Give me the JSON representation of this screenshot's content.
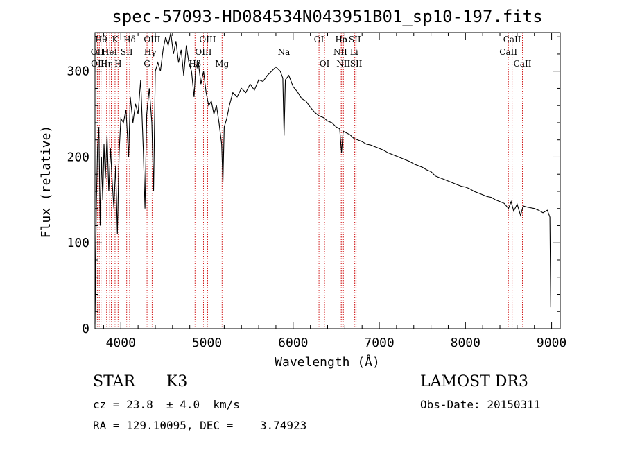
{
  "chart_data": {
    "type": "line",
    "title": "spec-57093-HD084534N043951B01_sp10-197.fits",
    "xlabel": "Wavelength (Å)",
    "ylabel": "Flux (relative)",
    "xlim": [
      3700,
      9100
    ],
    "ylim": [
      0,
      345
    ],
    "xticks": [
      4000,
      5000,
      6000,
      7000,
      8000,
      9000
    ],
    "yticks": [
      0,
      100,
      200,
      300
    ],
    "series": [
      {
        "name": "flux",
        "points": [
          [
            3700,
            5
          ],
          [
            3715,
            140
          ],
          [
            3730,
            210
          ],
          [
            3745,
            235
          ],
          [
            3760,
            120
          ],
          [
            3775,
            200
          ],
          [
            3790,
            150
          ],
          [
            3805,
            215
          ],
          [
            3820,
            175
          ],
          [
            3840,
            225
          ],
          [
            3860,
            160
          ],
          [
            3880,
            210
          ],
          [
            3900,
            170
          ],
          [
            3920,
            140
          ],
          [
            3940,
            190
          ],
          [
            3960,
            110
          ],
          [
            3980,
            205
          ],
          [
            4000,
            245
          ],
          [
            4030,
            240
          ],
          [
            4060,
            255
          ],
          [
            4090,
            200
          ],
          [
            4110,
            270
          ],
          [
            4140,
            240
          ],
          [
            4170,
            262
          ],
          [
            4200,
            250
          ],
          [
            4230,
            290
          ],
          [
            4260,
            210
          ],
          [
            4280,
            140
          ],
          [
            4300,
            250
          ],
          [
            4330,
            280
          ],
          [
            4360,
            240
          ],
          [
            4380,
            160
          ],
          [
            4400,
            300
          ],
          [
            4430,
            310
          ],
          [
            4460,
            300
          ],
          [
            4490,
            325
          ],
          [
            4520,
            340
          ],
          [
            4550,
            330
          ],
          [
            4580,
            345
          ],
          [
            4610,
            320
          ],
          [
            4640,
            335
          ],
          [
            4670,
            310
          ],
          [
            4700,
            325
          ],
          [
            4730,
            295
          ],
          [
            4760,
            330
          ],
          [
            4790,
            310
          ],
          [
            4820,
            300
          ],
          [
            4850,
            270
          ],
          [
            4870,
            305
          ],
          [
            4900,
            310
          ],
          [
            4930,
            285
          ],
          [
            4960,
            300
          ],
          [
            4990,
            275
          ],
          [
            5020,
            260
          ],
          [
            5050,
            265
          ],
          [
            5080,
            250
          ],
          [
            5110,
            260
          ],
          [
            5140,
            240
          ],
          [
            5170,
            215
          ],
          [
            5185,
            170
          ],
          [
            5200,
            235
          ],
          [
            5230,
            245
          ],
          [
            5260,
            260
          ],
          [
            5300,
            275
          ],
          [
            5350,
            270
          ],
          [
            5400,
            280
          ],
          [
            5450,
            275
          ],
          [
            5500,
            285
          ],
          [
            5550,
            278
          ],
          [
            5600,
            290
          ],
          [
            5650,
            288
          ],
          [
            5700,
            295
          ],
          [
            5750,
            300
          ],
          [
            5800,
            305
          ],
          [
            5850,
            300
          ],
          [
            5880,
            292
          ],
          [
            5895,
            225
          ],
          [
            5910,
            290
          ],
          [
            5950,
            295
          ],
          [
            6000,
            282
          ],
          [
            6050,
            276
          ],
          [
            6100,
            268
          ],
          [
            6150,
            265
          ],
          [
            6200,
            258
          ],
          [
            6250,
            252
          ],
          [
            6300,
            248
          ],
          [
            6350,
            246
          ],
          [
            6400,
            242
          ],
          [
            6450,
            240
          ],
          [
            6500,
            235
          ],
          [
            6540,
            233
          ],
          [
            6562,
            205
          ],
          [
            6580,
            230
          ],
          [
            6620,
            228
          ],
          [
            6660,
            226
          ],
          [
            6700,
            222
          ],
          [
            6750,
            220
          ],
          [
            6800,
            218
          ],
          [
            6850,
            215
          ],
          [
            6900,
            214
          ],
          [
            6950,
            212
          ],
          [
            7000,
            210
          ],
          [
            7050,
            208
          ],
          [
            7100,
            205
          ],
          [
            7150,
            203
          ],
          [
            7200,
            201
          ],
          [
            7250,
            199
          ],
          [
            7300,
            197
          ],
          [
            7350,
            195
          ],
          [
            7400,
            192
          ],
          [
            7450,
            190
          ],
          [
            7500,
            188
          ],
          [
            7550,
            185
          ],
          [
            7600,
            183
          ],
          [
            7650,
            178
          ],
          [
            7700,
            176
          ],
          [
            7750,
            174
          ],
          [
            7800,
            172
          ],
          [
            7850,
            170
          ],
          [
            7900,
            168
          ],
          [
            7950,
            166
          ],
          [
            8000,
            165
          ],
          [
            8050,
            163
          ],
          [
            8100,
            160
          ],
          [
            8150,
            158
          ],
          [
            8200,
            156
          ],
          [
            8250,
            154
          ],
          [
            8300,
            153
          ],
          [
            8350,
            150
          ],
          [
            8400,
            148
          ],
          [
            8450,
            146
          ],
          [
            8500,
            140
          ],
          [
            8530,
            148
          ],
          [
            8560,
            137
          ],
          [
            8600,
            145
          ],
          [
            8640,
            132
          ],
          [
            8670,
            143
          ],
          [
            8700,
            142
          ],
          [
            8750,
            141
          ],
          [
            8800,
            140
          ],
          [
            8850,
            138
          ],
          [
            8900,
            135
          ],
          [
            8950,
            138
          ],
          [
            8980,
            130
          ],
          [
            8990,
            25
          ]
        ]
      }
    ],
    "lines": [
      {
        "wave": 3727,
        "label": "OII",
        "row": 1
      },
      {
        "wave": 3750,
        "label": "OIII",
        "row": 2
      },
      {
        "wave": 3770,
        "label": "Hθ",
        "row": 0
      },
      {
        "wave": 3835,
        "label": "Hη",
        "row": 2
      },
      {
        "wave": 3870,
        "label": "HeI",
        "row": 1
      },
      {
        "wave": 3889,
        "label": "",
        "row": 0
      },
      {
        "wave": 3933,
        "label": "K",
        "row": 0
      },
      {
        "wave": 3968,
        "label": "H",
        "row": 2
      },
      {
        "wave": 4068,
        "label": "SII",
        "row": 1
      },
      {
        "wave": 4102,
        "label": "Hδ",
        "row": 0
      },
      {
        "wave": 4304,
        "label": "G",
        "row": 2
      },
      {
        "wave": 4340,
        "label": "Hγ",
        "row": 1
      },
      {
        "wave": 4363,
        "label": "OIII",
        "row": 0
      },
      {
        "wave": 4861,
        "label": "Hβ",
        "row": 2
      },
      {
        "wave": 4959,
        "label": "OIII",
        "row": 1
      },
      {
        "wave": 5007,
        "label": "OIII",
        "row": 0
      },
      {
        "wave": 5175,
        "label": "Mg",
        "row": 2
      },
      {
        "wave": 5893,
        "label": "Na",
        "row": 1
      },
      {
        "wave": 6300,
        "label": "OI",
        "row": 0
      },
      {
        "wave": 6364,
        "label": "OI",
        "row": 2
      },
      {
        "wave": 6548,
        "label": "NII",
        "row": 1
      },
      {
        "wave": 6563,
        "label": "Hα",
        "row": 0
      },
      {
        "wave": 6583,
        "label": "NII",
        "row": 2
      },
      {
        "wave": 6708,
        "label": "Li",
        "row": 1
      },
      {
        "wave": 6716,
        "label": "SII",
        "row": 0
      },
      {
        "wave": 6731,
        "label": "SII",
        "row": 2
      },
      {
        "wave": 8498,
        "label": "CaII",
        "row": 1
      },
      {
        "wave": 8542,
        "label": "CaII",
        "row": 0
      },
      {
        "wave": 8662,
        "label": "CaII",
        "row": 2
      }
    ]
  },
  "info": {
    "object_class": "STAR",
    "subclass": "K3",
    "survey": "LAMOST DR3",
    "redshift": "cz = 23.8  ± 4.0  km/s",
    "obs_date": "Obs-Date: 20150311",
    "coords": "RA = 129.10095, DEC =    3.74923"
  },
  "colors": {
    "spectrum": "#000000",
    "line_marker": "#cc0000",
    "axis": "#000000"
  }
}
